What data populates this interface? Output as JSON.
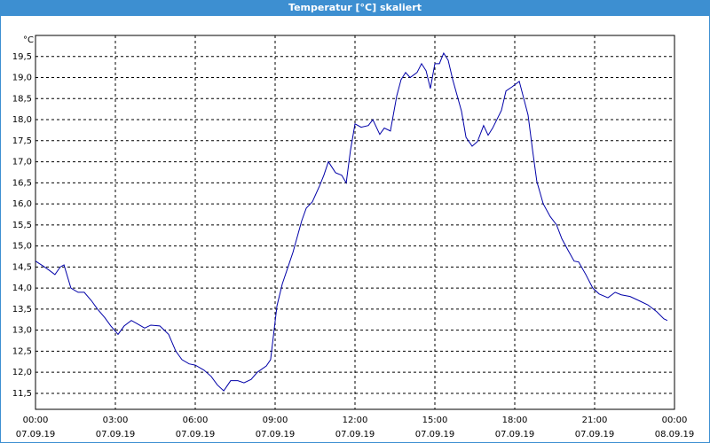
{
  "chart_data": {
    "type": "line",
    "title": "Temperatur [°C] skaliert",
    "y_unit": "°C",
    "x": [
      0,
      0.27,
      0.5,
      0.73,
      0.93,
      1.07,
      1.33,
      1.6,
      1.83,
      2.1,
      2.33,
      2.6,
      2.83,
      3.1,
      3.33,
      3.6,
      3.83,
      4.1,
      4.33,
      4.67,
      5,
      5.27,
      5.5,
      5.77,
      6,
      6.33,
      6.6,
      6.83,
      7.07,
      7.33,
      7.6,
      7.83,
      8.1,
      8.33,
      8.67,
      8.83,
      9.07,
      9.27,
      9.5,
      9.67,
      10,
      10.17,
      10.4,
      10.67,
      10.83,
      11,
      11.27,
      11.5,
      11.67,
      11.83,
      12,
      12.23,
      12.5,
      12.67,
      12.93,
      13.1,
      13.33,
      13.57,
      13.73,
      13.9,
      14.07,
      14.33,
      14.5,
      14.67,
      14.83,
      15,
      15.17,
      15.33,
      15.5,
      15.67,
      16,
      16.17,
      16.4,
      16.6,
      16.83,
      17,
      17.17,
      17.5,
      17.67,
      17.9,
      18.17,
      18.5,
      18.67,
      18.83,
      19.07,
      19.33,
      19.57,
      19.77,
      20,
      20.23,
      20.4,
      20.67,
      20.93,
      21.17,
      21.5,
      21.77,
      22,
      22.33,
      22.67,
      23,
      23.33,
      23.6,
      23.73
    ],
    "series": [
      {
        "name": "Temperatur",
        "color": "#0000a8",
        "values": [
          14.64,
          14.53,
          14.43,
          14.32,
          14.5,
          14.55,
          14.0,
          13.9,
          13.9,
          13.7,
          13.5,
          13.3,
          13.1,
          12.9,
          13.1,
          13.23,
          13.15,
          13.05,
          13.12,
          13.1,
          12.9,
          12.5,
          12.3,
          12.2,
          12.17,
          12.05,
          11.9,
          11.7,
          11.56,
          11.8,
          11.8,
          11.75,
          11.83,
          12.0,
          12.15,
          12.3,
          13.58,
          14.1,
          14.53,
          14.85,
          15.6,
          15.9,
          16.05,
          16.43,
          16.68,
          17.0,
          16.74,
          16.68,
          16.5,
          17.27,
          17.9,
          17.82,
          17.86,
          18.0,
          17.65,
          17.8,
          17.73,
          18.57,
          18.95,
          19.12,
          19.0,
          19.12,
          19.33,
          19.16,
          18.74,
          19.33,
          19.33,
          19.58,
          19.41,
          18.95,
          18.2,
          17.58,
          17.37,
          17.48,
          17.86,
          17.63,
          17.8,
          18.22,
          18.68,
          18.78,
          18.91,
          18.11,
          17.27,
          16.53,
          16.0,
          15.7,
          15.5,
          15.17,
          14.9,
          14.64,
          14.62,
          14.32,
          14.0,
          13.86,
          13.77,
          13.9,
          13.84,
          13.8,
          13.7,
          13.6,
          13.44,
          13.27,
          13.23
        ]
      }
    ],
    "xlim": [
      0,
      24
    ],
    "xticks": [
      {
        "value": 0,
        "label": "00:00",
        "date": "07.09.19"
      },
      {
        "value": 3,
        "label": "03:00",
        "date": "07.09.19"
      },
      {
        "value": 6,
        "label": "06:00",
        "date": "07.09.19"
      },
      {
        "value": 9,
        "label": "09:00",
        "date": "07.09.19"
      },
      {
        "value": 12,
        "label": "12:00",
        "date": "07.09.19"
      },
      {
        "value": 15,
        "label": "15:00",
        "date": "07.09.19"
      },
      {
        "value": 18,
        "label": "18:00",
        "date": "07.09.19"
      },
      {
        "value": 21,
        "label": "21:00",
        "date": "07.09.19"
      },
      {
        "value": 24,
        "label": "00:00",
        "date": "08.09.19"
      }
    ],
    "ylim": [
      11.12,
      20.0
    ],
    "yticks": [
      {
        "value": 11.5,
        "label": "11,5"
      },
      {
        "value": 12,
        "label": "12,0"
      },
      {
        "value": 12.5,
        "label": "12,5"
      },
      {
        "value": 13,
        "label": "13,0"
      },
      {
        "value": 13.5,
        "label": "13,5"
      },
      {
        "value": 14,
        "label": "14,0"
      },
      {
        "value": 14.5,
        "label": "14,5"
      },
      {
        "value": 15,
        "label": "15,0"
      },
      {
        "value": 15.5,
        "label": "15,5"
      },
      {
        "value": 16,
        "label": "16,0"
      },
      {
        "value": 16.5,
        "label": "16,5"
      },
      {
        "value": 17,
        "label": "17,0"
      },
      {
        "value": 17.5,
        "label": "17,5"
      },
      {
        "value": 18,
        "label": "18,0"
      },
      {
        "value": 18.5,
        "label": "18,5"
      },
      {
        "value": 19,
        "label": "19,0"
      },
      {
        "value": 19.5,
        "label": "19,5"
      }
    ],
    "grid": true
  }
}
